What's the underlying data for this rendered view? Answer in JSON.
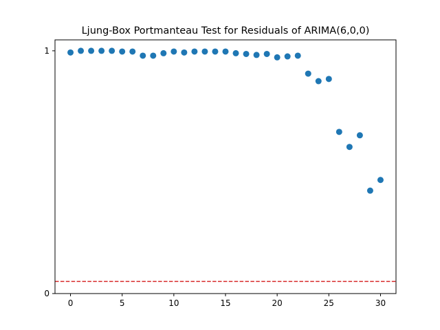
{
  "chart_data": {
    "type": "scatter",
    "title": "Ljung-Box Portmanteau Test for Residuals of ARIMA(6,0,0)",
    "xlabel": "",
    "ylabel": "",
    "x": [
      0,
      1,
      2,
      3,
      4,
      5,
      6,
      7,
      8,
      9,
      10,
      11,
      12,
      13,
      14,
      15,
      16,
      17,
      18,
      19,
      20,
      21,
      22,
      23,
      24,
      25,
      26,
      27,
      28,
      29,
      30
    ],
    "y": [
      0.993,
      1.0,
      1.0,
      1.0,
      1.0,
      0.997,
      0.997,
      0.98,
      0.98,
      0.99,
      0.997,
      0.993,
      0.997,
      0.997,
      0.997,
      0.997,
      0.99,
      0.987,
      0.983,
      0.987,
      0.973,
      0.977,
      0.98,
      0.906,
      0.875,
      0.884,
      0.666,
      0.604,
      0.652,
      0.424,
      0.468
    ],
    "xlim": [
      -1.5,
      31.5
    ],
    "ylim": [
      0,
      1.045
    ],
    "x_ticks": [
      0,
      5,
      10,
      15,
      20,
      25,
      30
    ],
    "y_ticks": [
      0,
      1
    ],
    "reference_line": {
      "y": 0.05,
      "style": "dashed",
      "color": "#d62728"
    },
    "marker_color": "#1f77b4",
    "grid": false
  }
}
